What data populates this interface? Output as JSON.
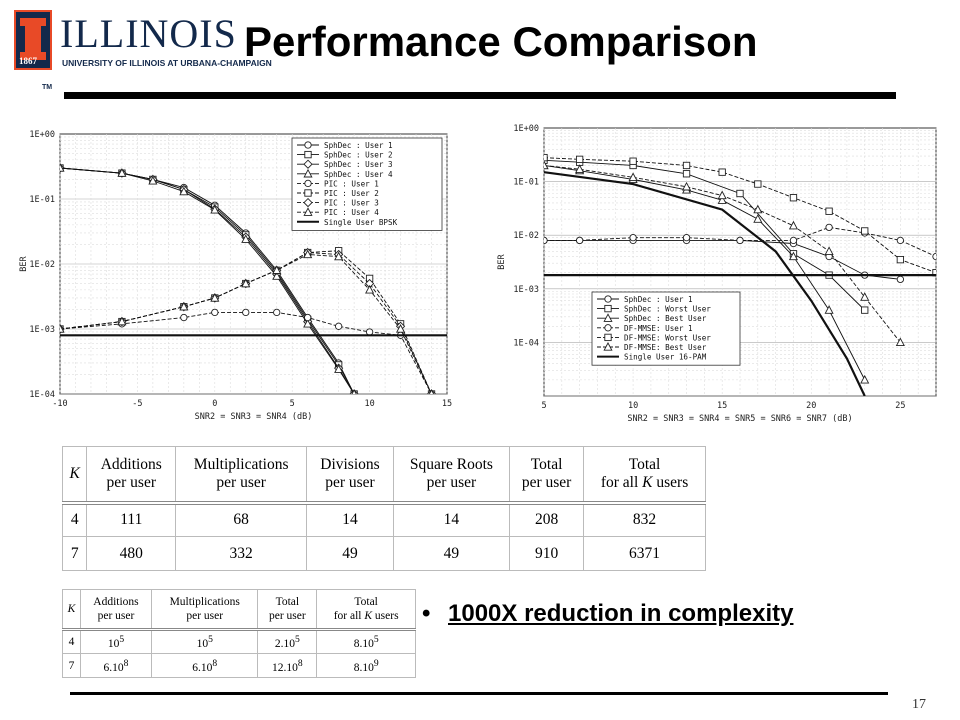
{
  "logo": {
    "wordmark": "ILLINOIS",
    "subtitle": "UNIVERSITY OF ILLINOIS AT URBANA-CHAMPAIGN",
    "year": "1867",
    "tm": "TM"
  },
  "slide": {
    "title": "Performance Comparison",
    "page_number": "17"
  },
  "bullet": {
    "marker": "•",
    "text": "1000X  reduction in complexity"
  },
  "table_ops": {
    "headers": [
      [
        "K"
      ],
      [
        "Additions",
        "per user"
      ],
      [
        "Multiplications",
        "per user"
      ],
      [
        "Divisions",
        "per user"
      ],
      [
        "Square Roots",
        "per user"
      ],
      [
        "Total",
        "per user"
      ],
      [
        "Total",
        "for all K users"
      ]
    ],
    "rows": [
      [
        "4",
        "111",
        "68",
        "14",
        "14",
        "208",
        "832"
      ],
      [
        "7",
        "480",
        "332",
        "49",
        "49",
        "910",
        "6371"
      ]
    ]
  },
  "table_mc": {
    "headers": [
      [
        "K"
      ],
      [
        "Additions",
        "per user"
      ],
      [
        "Multiplications",
        "per user"
      ],
      [
        "Total",
        "per user"
      ],
      [
        "Total",
        "for all K users"
      ]
    ],
    "rows": [
      [
        "4",
        "10^5",
        "10^5",
        "2.10^5",
        "8.10^5"
      ],
      [
        "7",
        "6.10^8",
        "6.10^8",
        "12.10^8",
        "8.10^9"
      ]
    ]
  },
  "chart_data": [
    {
      "type": "line",
      "title": "",
      "xlabel": "SNR2 = SNR3 = SNR4 (dB)",
      "ylabel": "BER",
      "xlim": [
        -10,
        15
      ],
      "ylim": [
        0.0001,
        1
      ],
      "yscale": "log",
      "grid": true,
      "legend_position": "top-right",
      "x_ticks": [
        "-10",
        "-5",
        "0",
        "5",
        "10",
        "15"
      ],
      "y_ticks": [
        "1E+00",
        "1E-01",
        "1E-02",
        "1E-03",
        "1E-04"
      ],
      "series": [
        {
          "name": "SphDec : User 1",
          "marker": "circle",
          "dash": "solid",
          "x": [
            -10,
            -6,
            -4,
            -2,
            0,
            2,
            4,
            6,
            8,
            9
          ],
          "y": [
            0.3,
            0.25,
            0.2,
            0.15,
            0.08,
            0.03,
            0.008,
            0.0015,
            0.0003,
            0.0001
          ]
        },
        {
          "name": "SphDec : User 2",
          "marker": "square",
          "dash": "solid",
          "x": [
            -10,
            -6,
            -4,
            -2,
            0,
            2,
            4,
            6,
            8,
            9
          ],
          "y": [
            0.3,
            0.25,
            0.2,
            0.14,
            0.075,
            0.028,
            0.0075,
            0.0014,
            0.00028,
            0.0001
          ]
        },
        {
          "name": "SphDec : User 3",
          "marker": "diamond",
          "dash": "solid",
          "x": [
            -10,
            -6,
            -4,
            -2,
            0,
            2,
            4,
            6,
            8,
            9
          ],
          "y": [
            0.3,
            0.25,
            0.2,
            0.14,
            0.07,
            0.026,
            0.007,
            0.0013,
            0.00025,
            0.0001
          ]
        },
        {
          "name": "SphDec : User 4",
          "marker": "triangle",
          "dash": "solid",
          "x": [
            -10,
            -6,
            -4,
            -2,
            0,
            2,
            4,
            6,
            8,
            9
          ],
          "y": [
            0.3,
            0.25,
            0.19,
            0.13,
            0.068,
            0.024,
            0.0065,
            0.0012,
            0.00024,
            0.0001
          ]
        },
        {
          "name": "PIC    : User 1",
          "marker": "circle",
          "dash": "dashed",
          "x": [
            -10,
            -6,
            -2,
            0,
            2,
            4,
            6,
            8,
            10,
            12,
            14
          ],
          "y": [
            0.001,
            0.0012,
            0.0015,
            0.0018,
            0.0018,
            0.0018,
            0.0015,
            0.0011,
            0.0009,
            0.0008,
            0.0001
          ]
        },
        {
          "name": "PIC    : User 2",
          "marker": "square",
          "dash": "dashed",
          "x": [
            -10,
            -6,
            -2,
            0,
            2,
            4,
            6,
            8,
            10,
            12,
            14
          ],
          "y": [
            0.001,
            0.0013,
            0.0022,
            0.003,
            0.005,
            0.008,
            0.015,
            0.016,
            0.006,
            0.0012,
            0.0001
          ]
        },
        {
          "name": "PIC    : User 3",
          "marker": "diamond",
          "dash": "dashed",
          "x": [
            -10,
            -6,
            -2,
            0,
            2,
            4,
            6,
            8,
            10,
            12,
            14
          ],
          "y": [
            0.001,
            0.0013,
            0.0022,
            0.003,
            0.005,
            0.008,
            0.015,
            0.014,
            0.005,
            0.0011,
            0.0001
          ]
        },
        {
          "name": "PIC    : User 4",
          "marker": "triangle",
          "dash": "dashed",
          "x": [
            -10,
            -6,
            -2,
            0,
            2,
            4,
            6,
            8,
            10,
            12,
            14
          ],
          "y": [
            0.001,
            0.0013,
            0.0022,
            0.003,
            0.005,
            0.008,
            0.014,
            0.013,
            0.004,
            0.001,
            0.0001
          ]
        },
        {
          "name": "Single User BPSK",
          "marker": "none",
          "dash": "solid-bold",
          "x": [
            -10,
            15
          ],
          "y": [
            0.0008,
            0.0008
          ]
        }
      ]
    },
    {
      "type": "line",
      "title": "",
      "xlabel": "SNR2 = SNR3 = SNR4 = SNR5 = SNR6 = SNR7 (dB)",
      "ylabel": "BER",
      "xlim": [
        5,
        27
      ],
      "ylim": [
        1e-05,
        1
      ],
      "yscale": "log",
      "grid": true,
      "legend_position": "bottom-left",
      "x_ticks": [
        "5",
        "10",
        "15",
        "20",
        "25"
      ],
      "y_ticks": [
        "1E+00",
        "1E-01",
        "1E-02",
        "1E-03",
        "1E-04"
      ],
      "series": [
        {
          "name": "SphDec : User 1",
          "marker": "circle",
          "dash": "solid",
          "x": [
            5,
            7,
            10,
            13,
            16,
            19,
            21,
            23,
            25
          ],
          "y": [
            0.008,
            0.008,
            0.008,
            0.008,
            0.008,
            0.007,
            0.004,
            0.0018,
            0.0015
          ]
        },
        {
          "name": "SphDec : Worst User",
          "marker": "square",
          "dash": "solid",
          "x": [
            5,
            7,
            10,
            13,
            16,
            19,
            21,
            23
          ],
          "y": [
            0.25,
            0.23,
            0.2,
            0.14,
            0.06,
            0.0045,
            0.0018,
            0.0004
          ]
        },
        {
          "name": "SphDec : Best User",
          "marker": "triangle",
          "dash": "solid",
          "x": [
            5,
            7,
            10,
            13,
            15,
            17,
            19,
            21,
            23
          ],
          "y": [
            0.2,
            0.16,
            0.11,
            0.07,
            0.045,
            0.02,
            0.004,
            0.0004,
            2e-05
          ]
        },
        {
          "name": "DF-MMSE: User 1",
          "marker": "circle",
          "dash": "dashed",
          "x": [
            5,
            7,
            10,
            13,
            16,
            19,
            21,
            23,
            25,
            27
          ],
          "y": [
            0.008,
            0.008,
            0.009,
            0.009,
            0.008,
            0.008,
            0.014,
            0.011,
            0.008,
            0.004
          ]
        },
        {
          "name": "DF-MMSE: Worst User",
          "marker": "square",
          "dash": "dashed",
          "x": [
            5,
            7,
            10,
            13,
            15,
            17,
            19,
            21,
            23,
            25,
            27
          ],
          "y": [
            0.28,
            0.26,
            0.24,
            0.2,
            0.15,
            0.09,
            0.05,
            0.028,
            0.012,
            0.0035,
            0.002
          ]
        },
        {
          "name": "DF-MMSE: Best User",
          "marker": "triangle",
          "dash": "dashed",
          "x": [
            5,
            7,
            10,
            13,
            15,
            17,
            19,
            21,
            23,
            25
          ],
          "y": [
            0.2,
            0.17,
            0.12,
            0.08,
            0.055,
            0.03,
            0.015,
            0.005,
            0.0007,
            0.0001
          ]
        },
        {
          "name": "Single User 16-PAM",
          "marker": "none",
          "dash": "solid-bold",
          "x": [
            5,
            10,
            15,
            18,
            20,
            22,
            23
          ],
          "y": [
            0.15,
            0.09,
            0.03,
            0.005,
            0.0006,
            5e-05,
            1e-05
          ]
        },
        {
          "name": "",
          "marker": "none",
          "dash": "solid-bold",
          "x": [
            5,
            27
          ],
          "y": [
            0.0018,
            0.0018
          ]
        }
      ]
    }
  ]
}
